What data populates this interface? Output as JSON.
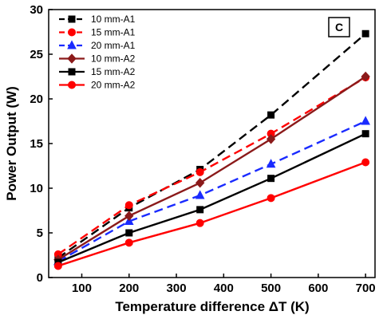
{
  "chart_data": {
    "type": "line",
    "panel_label": "C",
    "xlabel": "Temperature difference ΔT (K)",
    "ylabel": "Power Output (W)",
    "xlim": [
      30,
      720
    ],
    "ylim": [
      0,
      30
    ],
    "xticks": [
      100,
      200,
      300,
      400,
      500,
      600,
      700
    ],
    "yticks": [
      0,
      5,
      10,
      15,
      20,
      25,
      30
    ],
    "grid": false,
    "legend_position": "top-left",
    "series": [
      {
        "name": "10 mm-A1",
        "color": "#000000",
        "dash": true,
        "marker": "square",
        "x": [
          50,
          200,
          350,
          500,
          700
        ],
        "y": [
          2.2,
          7.8,
          12.1,
          18.2,
          27.3
        ]
      },
      {
        "name": "15 mm-A1",
        "color": "#ff0000",
        "dash": true,
        "marker": "circle",
        "x": [
          50,
          200,
          350,
          500,
          700
        ],
        "y": [
          2.6,
          8.1,
          11.8,
          16.1,
          22.4
        ]
      },
      {
        "name": "20 mm-A1",
        "color": "#1a2bff",
        "dash": true,
        "marker": "triangle",
        "x": [
          50,
          200,
          350,
          500,
          700
        ],
        "y": [
          1.8,
          6.3,
          9.2,
          12.7,
          17.5
        ]
      },
      {
        "name": "10 mm-A2",
        "color": "#8b1a1a",
        "dash": false,
        "marker": "diamond",
        "x": [
          50,
          200,
          350,
          500,
          700
        ],
        "y": [
          2.0,
          6.9,
          10.6,
          15.5,
          22.5
        ]
      },
      {
        "name": "15 mm-A2",
        "color": "#000000",
        "dash": false,
        "marker": "square",
        "x": [
          50,
          200,
          350,
          500,
          700
        ],
        "y": [
          1.7,
          5.0,
          7.6,
          11.1,
          16.1
        ]
      },
      {
        "name": "20 mm-A2",
        "color": "#ff0000",
        "dash": false,
        "marker": "circle",
        "x": [
          50,
          200,
          350,
          500,
          700
        ],
        "y": [
          1.3,
          3.9,
          6.1,
          8.9,
          12.9
        ]
      }
    ]
  }
}
